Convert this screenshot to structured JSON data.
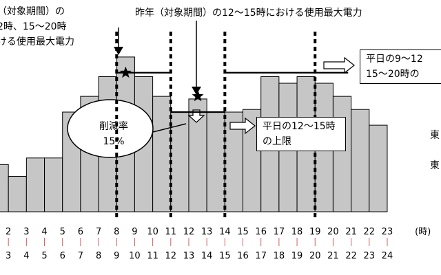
{
  "chart_data": {
    "type": "bar",
    "hour_labels_top": [
      "2",
      "3",
      "4",
      "5",
      "6",
      "7",
      "8",
      "9",
      "10",
      "11",
      "12",
      "13",
      "14",
      "15",
      "16",
      "17",
      "18",
      "19",
      "20",
      "21",
      "22",
      "23"
    ],
    "hour_labels_bottom": [
      "3",
      "4",
      "5",
      "6",
      "7",
      "8",
      "9",
      "10",
      "11",
      "12",
      "13",
      "14",
      "15",
      "16",
      "17",
      "18",
      "19",
      "20",
      "21",
      "22",
      "23",
      "24"
    ],
    "unit_label": "(時)",
    "values": [
      36,
      27,
      41,
      41,
      76,
      88,
      103,
      118,
      103,
      88,
      76,
      86,
      76,
      76,
      78,
      103,
      98,
      103,
      98,
      88,
      78,
      66
    ],
    "cap_level": 106,
    "lower_cap_level": 76,
    "ylim": [
      0,
      130
    ]
  },
  "annotations": {
    "top_left": "（対象期間）の\n2時、15～20時\nける使用最大電力",
    "top_center": "昨年（対象期間）の12～15時における使用最大電力",
    "top_right": "平日の9～12\n15～20時の",
    "reduction": "削減率\n15%",
    "lower_limit": "平日の12～15時\nの上限",
    "side_right": "東\n\n東"
  }
}
